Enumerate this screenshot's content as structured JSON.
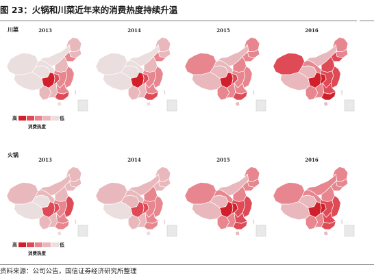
{
  "figure": {
    "title": "图 23：火锅和川菜近年来的消费热度持续升温",
    "source": "资料来源：公司公告，国信证券经济研究所整理"
  },
  "legend": {
    "high": "高",
    "low": "低",
    "name": "消费热度"
  },
  "colors": {
    "level_0": "#ebdedf",
    "level_1": "#e9b8bc",
    "level_2": "#e7868e",
    "level_3": "#de4a55",
    "level_4": "#d11f2b"
  },
  "regions_order": [
    "xinjiang",
    "tibet",
    "qinghai",
    "gansu",
    "innermongolia",
    "heilongjiang",
    "jilin",
    "liaoning",
    "north",
    "sichuan",
    "chongqing",
    "central",
    "east",
    "south",
    "yunnan",
    "guangxi",
    "guangdong",
    "taiwan",
    "hainan"
  ],
  "panels": [
    {
      "label": "川菜",
      "maps": [
        {
          "year": "2013",
          "levels": {
            "xinjiang": 0,
            "tibet": 0,
            "qinghai": 0,
            "gansu": 0,
            "innermongolia": 0,
            "heilongjiang": 1,
            "jilin": 1,
            "liaoning": 2,
            "north": 1,
            "sichuan": 4,
            "chongqing": 3,
            "central": 2,
            "east": 2,
            "south": 2,
            "yunnan": 1,
            "guangxi": 1,
            "guangdong": 3,
            "taiwan": 0,
            "hainan": 0
          }
        },
        {
          "year": "2014",
          "levels": {
            "xinjiang": 0,
            "tibet": 0,
            "qinghai": 0,
            "gansu": 0,
            "innermongolia": 0,
            "heilongjiang": 1,
            "jilin": 1,
            "liaoning": 2,
            "north": 1,
            "sichuan": 4,
            "chongqing": 3,
            "central": 2,
            "east": 2,
            "south": 2,
            "yunnan": 1,
            "guangxi": 1,
            "guangdong": 3,
            "taiwan": 0,
            "hainan": 0
          }
        },
        {
          "year": "2015",
          "levels": {
            "xinjiang": 2,
            "tibet": 1,
            "qinghai": 1,
            "gansu": 1,
            "innermongolia": 1,
            "heilongjiang": 2,
            "jilin": 2,
            "liaoning": 2,
            "north": 2,
            "sichuan": 4,
            "chongqing": 3,
            "central": 2,
            "east": 2,
            "south": 2,
            "yunnan": 2,
            "guangxi": 2,
            "guangdong": 3,
            "taiwan": 0,
            "hainan": 1
          }
        },
        {
          "year": "2016",
          "levels": {
            "xinjiang": 3,
            "tibet": 1,
            "qinghai": 1,
            "gansu": 2,
            "innermongolia": 1,
            "heilongjiang": 2,
            "jilin": 2,
            "liaoning": 3,
            "north": 3,
            "sichuan": 4,
            "chongqing": 4,
            "central": 3,
            "east": 3,
            "south": 3,
            "yunnan": 2,
            "guangxi": 2,
            "guangdong": 4,
            "taiwan": 0,
            "hainan": 1
          }
        }
      ]
    },
    {
      "label": "火锅",
      "maps": [
        {
          "year": "2013",
          "levels": {
            "xinjiang": 1,
            "tibet": 0,
            "qinghai": 0,
            "gansu": 1,
            "innermongolia": 1,
            "heilongjiang": 1,
            "jilin": 1,
            "liaoning": 1,
            "north": 1,
            "sichuan": 3,
            "chongqing": 3,
            "central": 2,
            "east": 3,
            "south": 2,
            "yunnan": 1,
            "guangxi": 1,
            "guangdong": 2,
            "taiwan": 0,
            "hainan": 0
          }
        },
        {
          "year": "2014",
          "levels": {
            "xinjiang": 1,
            "tibet": 0,
            "qinghai": 1,
            "gansu": 1,
            "innermongolia": 1,
            "heilongjiang": 1,
            "jilin": 1,
            "liaoning": 1,
            "north": 2,
            "sichuan": 3,
            "chongqing": 3,
            "central": 2,
            "east": 2,
            "south": 2,
            "yunnan": 1,
            "guangxi": 1,
            "guangdong": 2,
            "taiwan": 0,
            "hainan": 0
          }
        },
        {
          "year": "2015",
          "levels": {
            "xinjiang": 2,
            "tibet": 1,
            "qinghai": 1,
            "gansu": 2,
            "innermongolia": 1,
            "heilongjiang": 2,
            "jilin": 2,
            "liaoning": 2,
            "north": 2,
            "sichuan": 4,
            "chongqing": 4,
            "central": 3,
            "east": 3,
            "south": 3,
            "yunnan": 2,
            "guangxi": 2,
            "guangdong": 3,
            "taiwan": 0,
            "hainan": 1
          }
        },
        {
          "year": "2016",
          "levels": {
            "xinjiang": 2,
            "tibet": 1,
            "qinghai": 1,
            "gansu": 2,
            "innermongolia": 2,
            "heilongjiang": 2,
            "jilin": 2,
            "liaoning": 2,
            "north": 2,
            "sichuan": 4,
            "chongqing": 4,
            "central": 3,
            "east": 3,
            "south": 3,
            "yunnan": 2,
            "guangxi": 2,
            "guangdong": 3,
            "taiwan": 0,
            "hainan": 1
          }
        }
      ]
    }
  ]
}
